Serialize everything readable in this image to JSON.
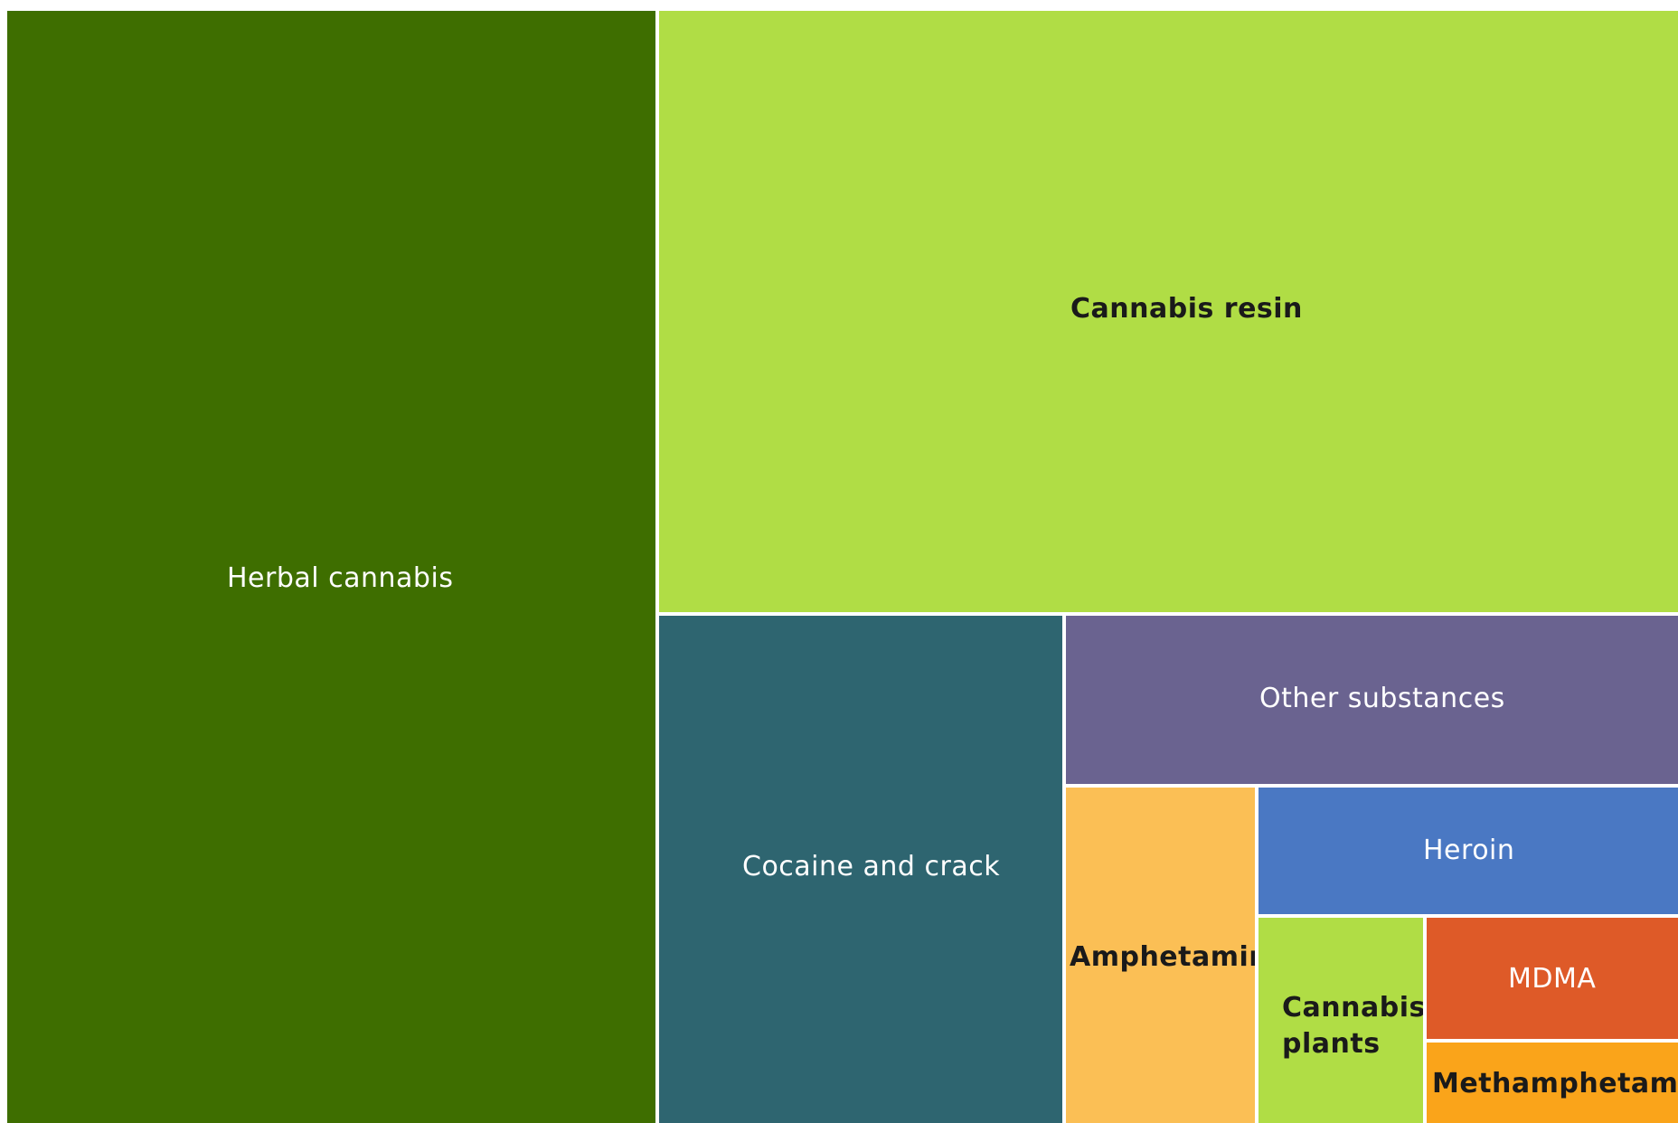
{
  "chart_data": {
    "type": "treemap",
    "cells": [
      {
        "label": "Herbal cannabis",
        "color": "#3e6e00"
      },
      {
        "label": "Cannabis resin",
        "color": "#b0dd45"
      },
      {
        "label": "Cocaine and crack",
        "color": "#2e6570"
      },
      {
        "label": "Other substances",
        "color": "#6a6390"
      },
      {
        "label": "Amphetamine",
        "color": "#fbbf55"
      },
      {
        "label": "Heroin",
        "color": "#4a78c3"
      },
      {
        "label": "Cannabis plants",
        "label_lines": [
          "Cannabis",
          "plants"
        ],
        "color": "#b0dd45"
      },
      {
        "label": "MDMA",
        "color": "#de5a28"
      },
      {
        "label": "Methamphetamine",
        "color": "#faa41a"
      }
    ]
  }
}
